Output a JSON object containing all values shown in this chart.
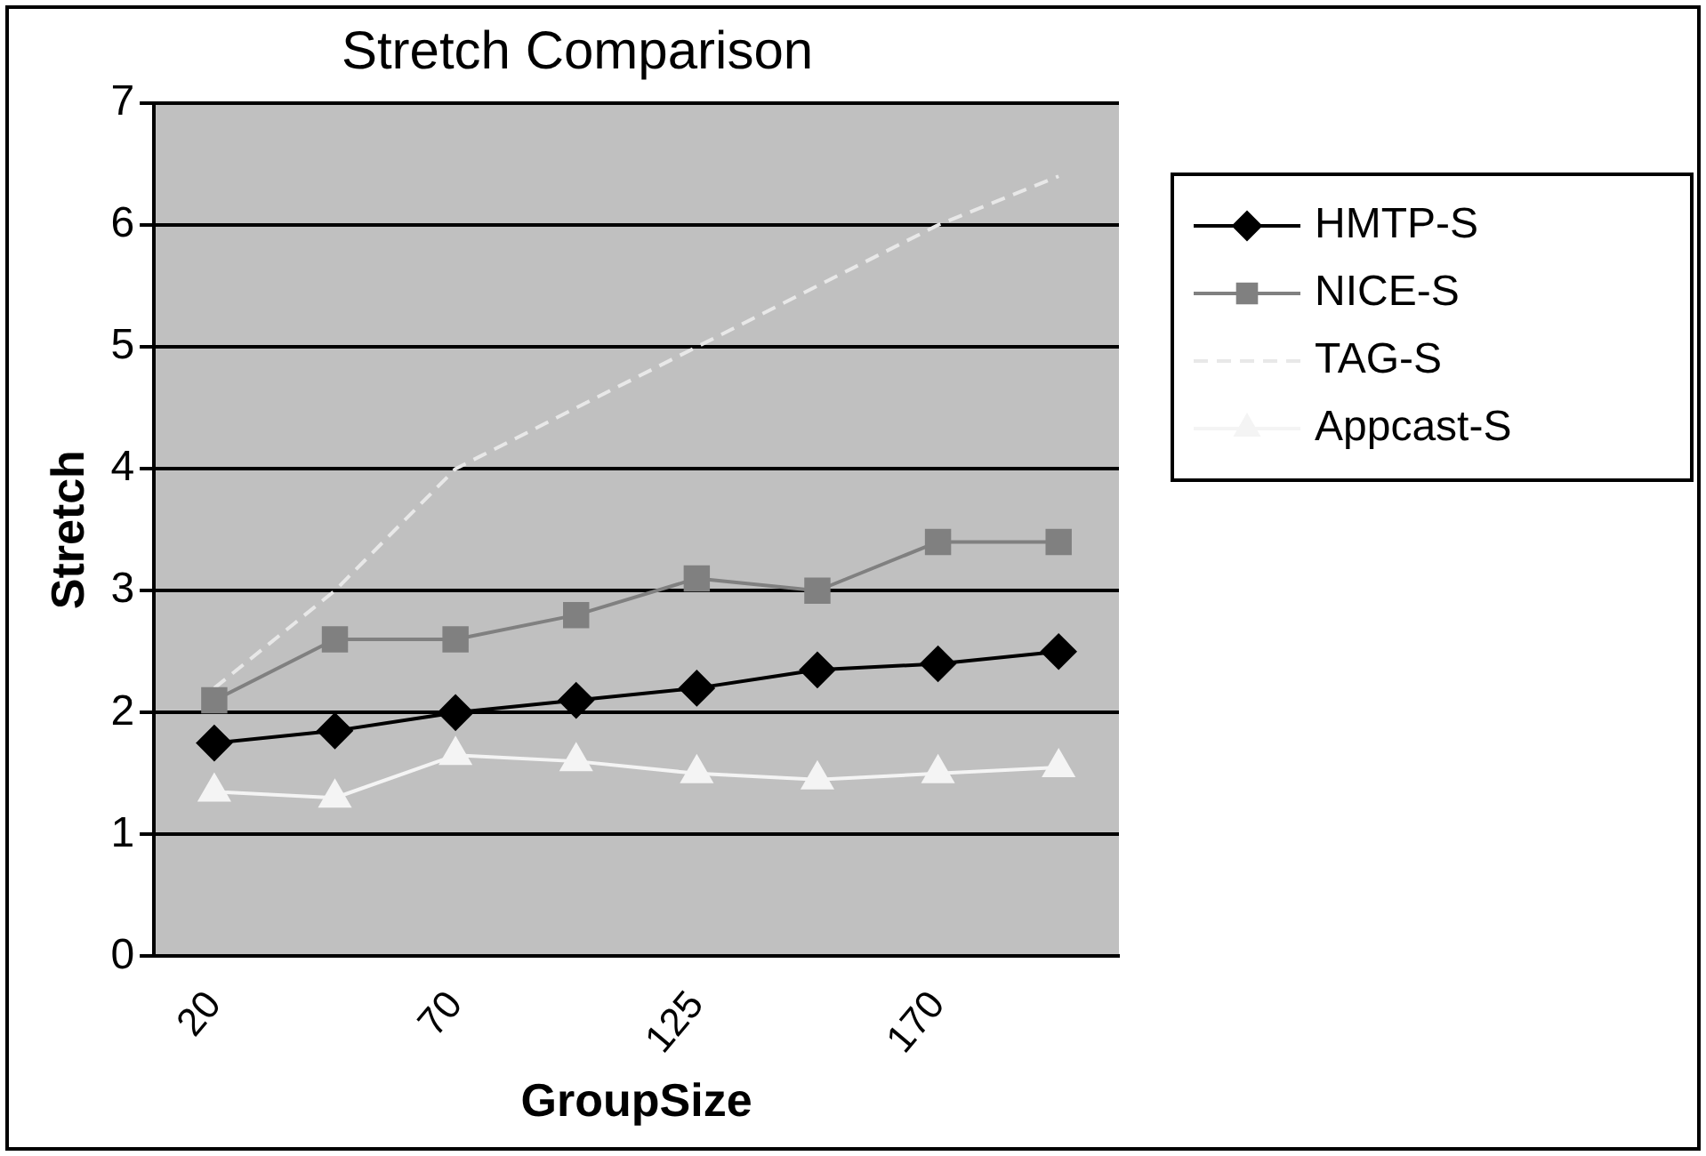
{
  "chart_data": {
    "type": "line",
    "title": "Stretch Comparison",
    "xlabel": "GroupSize",
    "ylabel": "Stretch",
    "categories": [
      "20",
      null,
      "70",
      null,
      "125",
      null,
      "170",
      null
    ],
    "series": [
      {
        "name": "HMTP-S",
        "color": "#000000",
        "marker": "diamond",
        "values": [
          1.75,
          1.85,
          2.0,
          2.1,
          2.2,
          2.35,
          2.4,
          2.5
        ]
      },
      {
        "name": "NICE-S",
        "color": "#808080",
        "marker": "square",
        "values": [
          2.1,
          2.6,
          2.6,
          2.8,
          3.1,
          3.0,
          3.4,
          3.4
        ]
      },
      {
        "name": "TAG-S",
        "color": "#e8e8e8",
        "marker": "none",
        "line_style": "dashed",
        "values": [
          2.2,
          3.0,
          4.0,
          4.5,
          5.0,
          5.5,
          6.0,
          6.4
        ]
      },
      {
        "name": "Appcast-S",
        "color": "#f4f4f4",
        "marker": "triangle",
        "values": [
          1.35,
          1.3,
          1.65,
          1.6,
          1.5,
          1.45,
          1.5,
          1.55
        ]
      }
    ],
    "ylim": [
      0,
      7
    ],
    "yticks": [
      0,
      1,
      2,
      3,
      4,
      5,
      6,
      7
    ],
    "grid": "y",
    "legend": "right"
  }
}
